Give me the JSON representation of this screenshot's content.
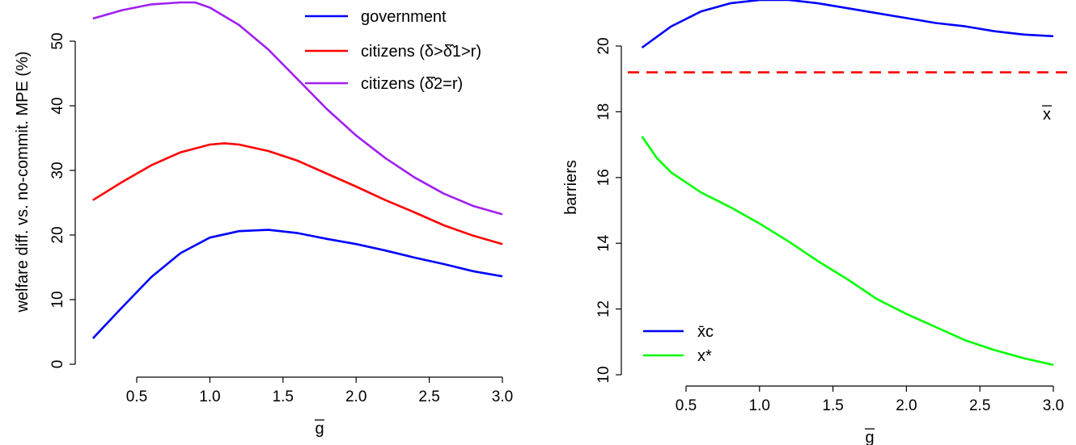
{
  "chart_data": [
    {
      "type": "line",
      "title": "",
      "xlabel": "g",
      "xlabel_overbar": true,
      "ylabel": "welfare diff. vs. no-commit. MPE (%)",
      "xlim": [
        0.2,
        3.0
      ],
      "ylim": [
        0,
        56
      ],
      "xticks": [
        0.5,
        1.0,
        1.5,
        2.0,
        2.5,
        3.0
      ],
      "xtick_labels": [
        "0.5",
        "1.0",
        "1.5",
        "2.0",
        "2.5",
        "3.0"
      ],
      "yticks": [
        0,
        10,
        20,
        30,
        40,
        50
      ],
      "ytick_labels": [
        "0",
        "10",
        "20",
        "30",
        "40",
        "50"
      ],
      "grid": false,
      "legend_position": "top-right",
      "series": [
        {
          "name": "government",
          "color": "#0000ff",
          "x": [
            0.2,
            0.4,
            0.6,
            0.8,
            1.0,
            1.2,
            1.4,
            1.6,
            1.8,
            2.0,
            2.2,
            2.4,
            2.6,
            2.8,
            3.0
          ],
          "y": [
            4.0,
            8.8,
            13.5,
            17.2,
            19.6,
            20.6,
            20.8,
            20.3,
            19.4,
            18.6,
            17.6,
            16.5,
            15.5,
            14.4,
            13.6
          ]
        },
        {
          "name": "citizens (δ>δ̂1>r)",
          "color": "#ff0000",
          "x": [
            0.2,
            0.4,
            0.6,
            0.8,
            1.0,
            1.1,
            1.2,
            1.4,
            1.6,
            1.8,
            2.0,
            2.2,
            2.4,
            2.6,
            2.8,
            3.0
          ],
          "y": [
            25.4,
            28.2,
            30.8,
            32.8,
            34.0,
            34.2,
            34.0,
            33.0,
            31.5,
            29.5,
            27.5,
            25.4,
            23.5,
            21.5,
            19.9,
            18.6
          ]
        },
        {
          "name": "citizens (δ̂2=r)",
          "color": "#a020f0",
          "x": [
            0.2,
            0.4,
            0.6,
            0.8,
            0.9,
            1.0,
            1.2,
            1.4,
            1.6,
            1.8,
            2.0,
            2.2,
            2.4,
            2.6,
            2.8,
            3.0
          ],
          "y": [
            53.5,
            54.8,
            55.7,
            56.0,
            56.0,
            55.2,
            52.5,
            48.7,
            44.1,
            39.5,
            35.4,
            31.9,
            28.9,
            26.4,
            24.5,
            23.2
          ]
        }
      ]
    },
    {
      "type": "line",
      "title": "",
      "xlabel": "g",
      "xlabel_overbar": true,
      "ylabel": "barriers",
      "xlim": [
        0.2,
        3.0
      ],
      "ylim": [
        10,
        21.4
      ],
      "xticks": [
        0.5,
        1.0,
        1.5,
        2.0,
        2.5,
        3.0
      ],
      "xtick_labels": [
        "0.5",
        "1.0",
        "1.5",
        "2.0",
        "2.5",
        "3.0"
      ],
      "yticks": [
        10,
        12,
        14,
        16,
        18,
        20
      ],
      "ytick_labels": [
        "10",
        "12",
        "14",
        "16",
        "18",
        "20"
      ],
      "grid": false,
      "legend_position": "bottom-left",
      "series": [
        {
          "name": "x̄c",
          "color": "#0000ff",
          "x": [
            0.2,
            0.4,
            0.6,
            0.8,
            1.0,
            1.2,
            1.4,
            1.6,
            1.8,
            2.0,
            2.2,
            2.4,
            2.6,
            2.8,
            3.0
          ],
          "y": [
            19.95,
            20.6,
            21.05,
            21.3,
            21.4,
            21.4,
            21.3,
            21.15,
            21.0,
            20.85,
            20.7,
            20.6,
            20.45,
            20.35,
            20.3
          ]
        },
        {
          "name": "x*",
          "color": "#00ff00",
          "x": [
            0.2,
            0.3,
            0.4,
            0.6,
            0.8,
            1.0,
            1.2,
            1.4,
            1.6,
            1.8,
            2.0,
            2.2,
            2.4,
            2.6,
            2.8,
            3.0
          ],
          "y": [
            17.25,
            16.6,
            16.15,
            15.55,
            15.1,
            14.6,
            14.05,
            13.45,
            12.9,
            12.3,
            11.85,
            11.45,
            11.05,
            10.75,
            10.5,
            10.3
          ]
        }
      ],
      "reference_line": {
        "y": 19.2,
        "color": "#ff0000",
        "style": "dashed",
        "label": "x"
      }
    }
  ]
}
